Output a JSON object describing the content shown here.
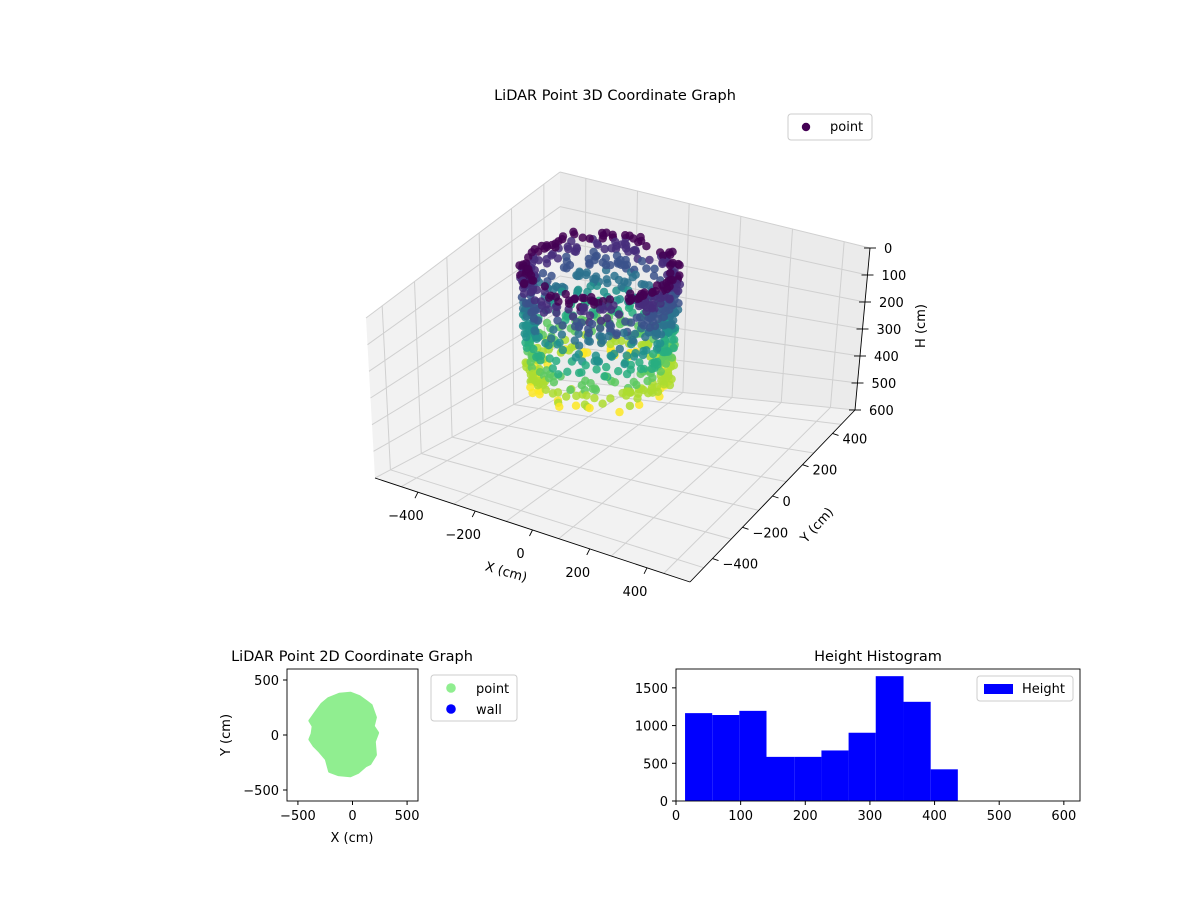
{
  "figure": {
    "background": "#ffffff"
  },
  "chart_data": [
    {
      "type": "scatter3d",
      "title": "LiDAR Point 3D Coordinate Graph",
      "xlabel": "X (cm)",
      "ylabel": "Y (cm)",
      "zlabel": "H (cm)",
      "xlim": [
        -550,
        550
      ],
      "ylim": [
        -550,
        550
      ],
      "zlim": [
        600,
        0
      ],
      "x_ticks": [
        -400,
        -200,
        0,
        200,
        400
      ],
      "y_ticks": [
        -400,
        -200,
        0,
        200,
        400
      ],
      "z_ticks": [
        0,
        100,
        200,
        300,
        400,
        500,
        600
      ],
      "colormap": "viridis",
      "legend": {
        "location": "upper-right",
        "entries": [
          {
            "label": "point",
            "color": "#440154"
          }
        ]
      },
      "grid": true,
      "shape": "roughly cylindrical wall of points, radius about 300 cm, heights 0 to about 440 cm"
    },
    {
      "type": "scatter",
      "title": "LiDAR Point 2D Coordinate Graph",
      "xlabel": "X (cm)",
      "ylabel": "Y (cm)",
      "xlim": [
        -600,
        600
      ],
      "ylim": [
        -600,
        600
      ],
      "x_ticks": [
        -500,
        0,
        500
      ],
      "y_ticks": [
        -500,
        0,
        500
      ],
      "series": [
        {
          "name": "point",
          "color": "#90ee90"
        },
        {
          "name": "wall",
          "color": "#0000ff"
        }
      ],
      "shape_outline": [
        [
          -280,
          280
        ],
        [
          -220,
          330
        ],
        [
          -120,
          370
        ],
        [
          -20,
          380
        ],
        [
          60,
          350
        ],
        [
          130,
          300
        ],
        [
          170,
          270
        ],
        [
          210,
          160
        ],
        [
          190,
          80
        ],
        [
          230,
          20
        ],
        [
          200,
          -60
        ],
        [
          210,
          -180
        ],
        [
          160,
          -260
        ],
        [
          120,
          -280
        ],
        [
          50,
          -340
        ],
        [
          -20,
          -370
        ],
        [
          -130,
          -360
        ],
        [
          -210,
          -330
        ],
        [
          -240,
          -220
        ],
        [
          -300,
          -150
        ],
        [
          -350,
          -100
        ],
        [
          -390,
          -40
        ],
        [
          -370,
          10
        ],
        [
          -360,
          80
        ],
        [
          -390,
          130
        ],
        [
          -340,
          200
        ]
      ],
      "legend": {
        "location": "outside-right"
      }
    },
    {
      "type": "bar",
      "title": "Height Histogram",
      "xlabel": "",
      "ylabel": "",
      "xlim": [
        0,
        625
      ],
      "ylim": [
        0,
        1750
      ],
      "x_ticks": [
        0,
        100,
        200,
        300,
        400,
        500,
        600
      ],
      "y_ticks": [
        0,
        500,
        1000,
        1500
      ],
      "color": "#0000ff",
      "series": [
        {
          "name": "Height",
          "bin_edges": [
            14,
            56,
            98,
            140,
            183,
            225,
            267,
            309,
            352,
            394,
            436
          ],
          "values": [
            1165,
            1140,
            1195,
            585,
            585,
            670,
            905,
            1655,
            1315,
            420
          ]
        }
      ],
      "legend": {
        "location": "upper-right"
      }
    }
  ]
}
